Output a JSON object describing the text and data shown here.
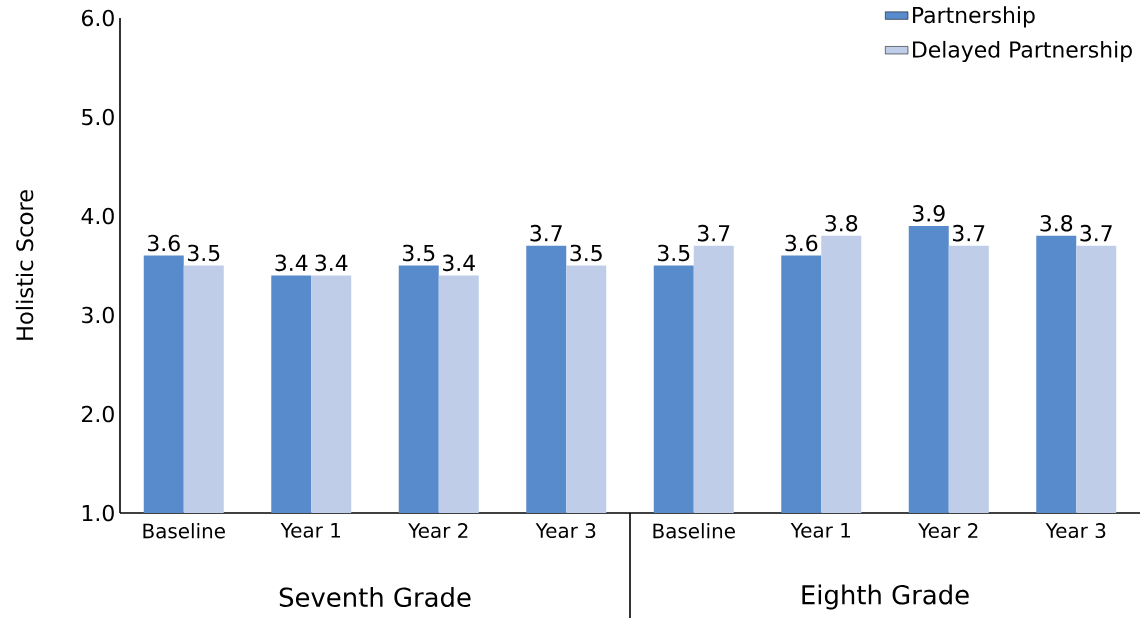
{
  "chart_data": {
    "type": "bar",
    "ylabel": "Holistic Score",
    "categories": [
      "Baseline",
      "Year 1",
      "Year 2",
      "Year 3",
      "Baseline",
      "Year 1",
      "Year 2",
      "Year 3"
    ],
    "series": [
      {
        "name": "Partnership",
        "color": "#588bcb",
        "values": [
          3.6,
          3.4,
          3.5,
          3.7,
          3.5,
          3.6,
          3.9,
          3.8
        ]
      },
      {
        "name": "Delayed Partnership",
        "color": "#bfcde9",
        "values": [
          3.5,
          3.4,
          3.4,
          3.5,
          3.7,
          3.8,
          3.7,
          3.7
        ]
      }
    ],
    "ylim": [
      1,
      6
    ],
    "yticks": [
      {
        "value": 1,
        "label": "1.0"
      },
      {
        "value": 2,
        "label": "2.0"
      },
      {
        "value": 3,
        "label": "3.0"
      },
      {
        "value": 4,
        "label": "4.0"
      },
      {
        "value": 5,
        "label": "5.0"
      },
      {
        "value": 6,
        "label": "6.0"
      }
    ],
    "annotations": [
      "Seventh Grade",
      "Eighth Grade"
    ],
    "data_labels": true,
    "legend": "top right",
    "grid": false
  }
}
